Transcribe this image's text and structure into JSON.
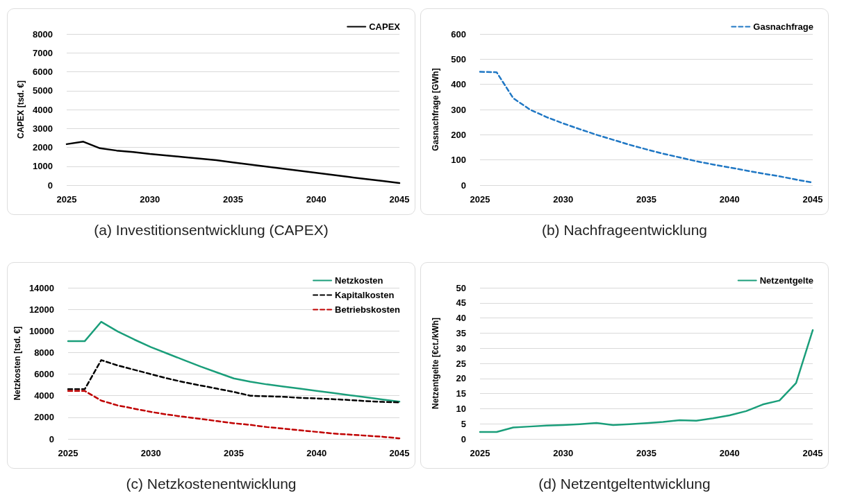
{
  "chart_data": [
    {
      "type": "line",
      "ylabel": "CAPEX [tsd. €]",
      "annotations": [
        "(a) Investitionsentwicklung (CAPEX)"
      ],
      "x": [
        2025,
        2026,
        2027,
        2028,
        2029,
        2030,
        2031,
        2032,
        2033,
        2034,
        2035,
        2036,
        2037,
        2038,
        2039,
        2040,
        2041,
        2042,
        2043,
        2044,
        2045
      ],
      "series": [
        {
          "name": "CAPEX",
          "color": "#000000",
          "line_style": "solid",
          "values": [
            2170,
            2300,
            1950,
            1830,
            1750,
            1650,
            1570,
            1490,
            1400,
            1320,
            1200,
            1090,
            980,
            870,
            760,
            650,
            540,
            430,
            320,
            220,
            110
          ]
        }
      ],
      "xlim": [
        2025,
        2045
      ],
      "xticks": [
        2025,
        2030,
        2035,
        2040,
        2045
      ],
      "ylim": [
        0,
        8000
      ],
      "yticks": [
        0,
        1000,
        2000,
        3000,
        4000,
        5000,
        6000,
        7000,
        8000
      ],
      "grid": "y",
      "legend": "top right",
      "marker": "none"
    },
    {
      "type": "line",
      "ylabel": "Gasnachfrage [GWh]",
      "annotations": [
        "(b) Nachfrageentwicklung"
      ],
      "x": [
        2025,
        2026,
        2027,
        2028,
        2029,
        2030,
        2031,
        2032,
        2033,
        2034,
        2035,
        2036,
        2037,
        2038,
        2039,
        2040,
        2041,
        2042,
        2043,
        2044,
        2045
      ],
      "series": [
        {
          "name": "Gasnachfrage",
          "color": "#1f77c4",
          "line_style": "dashed",
          "values": [
            450,
            448,
            345,
            300,
            270,
            245,
            222,
            200,
            180,
            160,
            142,
            125,
            110,
            95,
            82,
            70,
            58,
            46,
            35,
            22,
            10
          ]
        }
      ],
      "xlim": [
        2025,
        2045
      ],
      "xticks": [
        2025,
        2030,
        2035,
        2040,
        2045
      ],
      "ylim": [
        0,
        600
      ],
      "yticks": [
        0,
        100,
        200,
        300,
        400,
        500,
        600
      ],
      "grid": "y",
      "legend": "top right",
      "marker": "none"
    },
    {
      "type": "line",
      "ylabel": "Netzkosten [tsd. €]",
      "annotations": [
        "(c) Netzkostenentwicklung"
      ],
      "x": [
        2025,
        2026,
        2027,
        2028,
        2029,
        2030,
        2031,
        2032,
        2033,
        2034,
        2035,
        2036,
        2037,
        2038,
        2039,
        2040,
        2041,
        2042,
        2043,
        2044,
        2045
      ],
      "series": [
        {
          "name": "Netzkosten",
          "color": "#1a9e7a",
          "line_style": "solid",
          "values": [
            9050,
            9050,
            10850,
            9950,
            9200,
            8500,
            7900,
            7300,
            6700,
            6150,
            5600,
            5300,
            5050,
            4850,
            4650,
            4450,
            4250,
            4050,
            3850,
            3650,
            3450
          ]
        },
        {
          "name": "Kapitalkosten",
          "color": "#000000",
          "line_style": "dashed",
          "values": [
            4600,
            4600,
            7300,
            6800,
            6400,
            6000,
            5600,
            5250,
            4950,
            4650,
            4350,
            4000,
            3950,
            3900,
            3800,
            3750,
            3680,
            3600,
            3500,
            3430,
            3380
          ]
        },
        {
          "name": "Betriebskosten",
          "color": "#c00000",
          "line_style": "dashed",
          "values": [
            4450,
            4450,
            3550,
            3100,
            2800,
            2500,
            2250,
            2050,
            1850,
            1650,
            1450,
            1300,
            1100,
            950,
            800,
            650,
            500,
            400,
            300,
            200,
            50
          ]
        }
      ],
      "xlim": [
        2025,
        2045
      ],
      "xticks": [
        2025,
        2030,
        2035,
        2040,
        2045
      ],
      "ylim": [
        0,
        14000
      ],
      "yticks": [
        0,
        2000,
        4000,
        6000,
        8000,
        10000,
        12000,
        14000
      ],
      "grid": "y",
      "legend": "top right",
      "marker": "none"
    },
    {
      "type": "line",
      "ylabel": "Netzentgelte [€ct./kWh]",
      "annotations": [
        "(d) Netzentgeltentwicklung"
      ],
      "x": [
        2025,
        2026,
        2027,
        2028,
        2029,
        2030,
        2031,
        2032,
        2033,
        2034,
        2035,
        2036,
        2037,
        2038,
        2039,
        2040,
        2041,
        2042,
        2043,
        2044,
        2045
      ],
      "series": [
        {
          "name": "Netzentgelte",
          "color": "#1a9e7a",
          "line_style": "solid",
          "values": [
            2.3,
            2.3,
            3.8,
            4.1,
            4.4,
            4.6,
            4.9,
            5.3,
            4.6,
            4.9,
            5.2,
            5.6,
            6.2,
            6.0,
            6.8,
            7.8,
            9.2,
            11.4,
            12.7,
            18.5,
            36
          ]
        }
      ],
      "xlim": [
        2025,
        2045
      ],
      "xticks": [
        2025,
        2030,
        2035,
        2040,
        2045
      ],
      "ylim": [
        0,
        50
      ],
      "yticks": [
        0,
        5,
        10,
        15,
        20,
        25,
        30,
        35,
        40,
        45,
        50
      ],
      "grid": "y",
      "legend": "top right",
      "marker": "none"
    }
  ]
}
